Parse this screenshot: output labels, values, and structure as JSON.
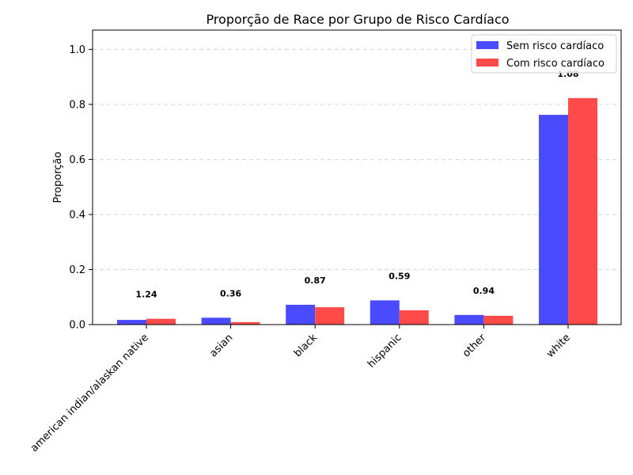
{
  "chart_data": {
    "type": "bar",
    "title": "Proporção de Race por Grupo de Risco Cardíaco",
    "xlabel": "",
    "ylabel": "Proporção",
    "categories": [
      "american indian/alaskan native",
      "asian",
      "black",
      "hispanic",
      "other",
      "white"
    ],
    "series": [
      {
        "name": "Sem risco cardíaco",
        "color": "#4a4aff",
        "values": [
          0.017,
          0.025,
          0.072,
          0.088,
          0.035,
          0.762
        ]
      },
      {
        "name": "Com risco cardíaco",
        "color": "#ff4a4a",
        "values": [
          0.021,
          0.009,
          0.063,
          0.052,
          0.032,
          0.823
        ]
      }
    ],
    "annotations": [
      "1.24",
      "0.36",
      "0.87",
      "0.59",
      "0.94",
      "1.08"
    ],
    "yticks": [
      "0.0",
      "0.2",
      "0.4",
      "0.6",
      "0.8",
      "1.0"
    ],
    "ylim": [
      0,
      1.07
    ],
    "grid": "y-dashed",
    "legend_position": "top-right"
  }
}
